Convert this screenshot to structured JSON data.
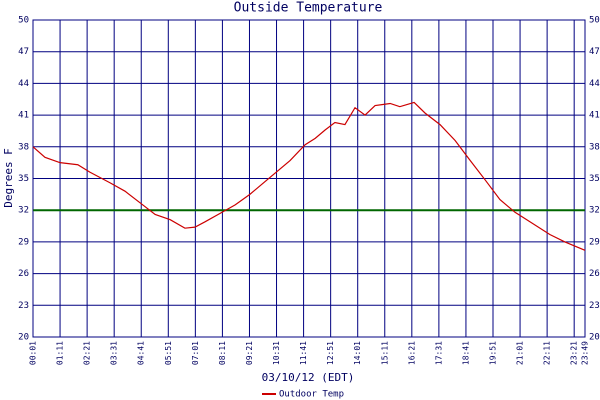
{
  "chart_data": {
    "type": "line",
    "title": "Outside Temperature",
    "ylabel": "Degrees F",
    "xlabel": "03/10/12 (EDT)",
    "x": [
      1,
      32,
      71,
      117,
      148,
      200,
      239,
      278,
      317,
      356,
      394,
      420,
      446,
      485,
      524,
      562,
      614,
      666,
      705,
      731,
      757,
      782,
      808,
      834,
      860,
      886,
      925,
      950,
      987,
      1015,
      1054,
      1093,
      1132,
      1170,
      1209,
      1248,
      1287,
      1338,
      1377,
      1429
    ],
    "series": [
      {
        "name": "Outdoor Temp",
        "color": "#cc0000",
        "values": [
          38.0,
          37.0,
          36.5,
          36.3,
          35.6,
          34.6,
          33.8,
          32.7,
          31.6,
          31.1,
          30.3,
          30.4,
          30.9,
          31.7,
          32.5,
          33.5,
          35.1,
          36.7,
          38.2,
          38.8,
          39.6,
          40.3,
          40.1,
          41.7,
          41.0,
          41.9,
          42.1,
          41.8,
          42.2,
          41.2,
          40.1,
          38.6,
          36.7,
          34.9,
          33.0,
          31.8,
          30.9,
          29.7,
          29.0,
          28.2
        ]
      }
    ],
    "xlim": [
      1,
      1429
    ],
    "xticks": [
      {
        "value": 1,
        "label": "00:01"
      },
      {
        "value": 71,
        "label": "01:11"
      },
      {
        "value": 141,
        "label": "02:21"
      },
      {
        "value": 211,
        "label": "03:31"
      },
      {
        "value": 281,
        "label": "04:41"
      },
      {
        "value": 351,
        "label": "05:51"
      },
      {
        "value": 421,
        "label": "07:01"
      },
      {
        "value": 491,
        "label": "08:11"
      },
      {
        "value": 561,
        "label": "09:21"
      },
      {
        "value": 631,
        "label": "10:31"
      },
      {
        "value": 701,
        "label": "11:41"
      },
      {
        "value": 771,
        "label": "12:51"
      },
      {
        "value": 841,
        "label": "14:01"
      },
      {
        "value": 911,
        "label": "15:11"
      },
      {
        "value": 981,
        "label": "16:21"
      },
      {
        "value": 1051,
        "label": "17:31"
      },
      {
        "value": 1121,
        "label": "18:41"
      },
      {
        "value": 1191,
        "label": "19:51"
      },
      {
        "value": 1261,
        "label": "21:01"
      },
      {
        "value": 1331,
        "label": "22:11"
      },
      {
        "value": 1401,
        "label": "23:21"
      },
      {
        "value": 1429,
        "label": "23:49"
      }
    ],
    "ylim": [
      20,
      50
    ],
    "yticks": [
      20,
      23,
      26,
      29,
      32,
      35,
      38,
      41,
      44,
      47,
      50
    ],
    "grid": true,
    "grid_color": "#000080",
    "hline": {
      "value": 32,
      "color": "#006600"
    }
  }
}
